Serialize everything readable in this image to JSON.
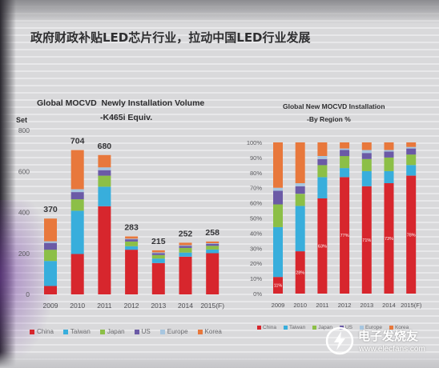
{
  "slide": {
    "title": "政府财政补贴LED芯片行业，拉动中国LED行业发展"
  },
  "chart_data": [
    {
      "type": "bar",
      "stacked": true,
      "title": "Global MOCVD  Newly Installation Volume",
      "subtitle": "-K465i Equiv.",
      "xlabel": "",
      "ylabel": "Set",
      "ylim": [
        0,
        800
      ],
      "yticks": [
        "0",
        "200",
        "400",
        "600",
        "800"
      ],
      "grid": false,
      "legend": "bottom",
      "categories": [
        "2009",
        "2010",
        "2011",
        "2012",
        "2013",
        "2014",
        "2015(F)"
      ],
      "totals": [
        370,
        704,
        680,
        283,
        215,
        252,
        258
      ],
      "series": [
        {
          "name": "China",
          "color": "#d7262d",
          "values": [
            41,
            197,
            430,
            218,
            153,
            184,
            201
          ]
        },
        {
          "name": "Taiwan",
          "color": "#38aedc",
          "values": [
            122,
            211,
            95,
            17,
            22,
            20,
            18
          ]
        },
        {
          "name": "Japan",
          "color": "#8cbf47",
          "values": [
            55,
            56,
            54,
            23,
            17,
            23,
            18
          ]
        },
        {
          "name": "US",
          "color": "#6b5aa6",
          "values": [
            33,
            35,
            27,
            11,
            9,
            10,
            10
          ]
        },
        {
          "name": "Europe",
          "color": "#a7c6e0",
          "values": [
            8,
            14,
            14,
            3,
            4,
            3,
            3
          ]
        },
        {
          "name": "Korea",
          "color": "#e8783c",
          "values": [
            111,
            191,
            60,
            11,
            10,
            12,
            8
          ]
        }
      ]
    },
    {
      "type": "bar",
      "stacked": true,
      "title": "Global New MOCVD Installation",
      "subtitle": "-By Region %",
      "xlabel": "",
      "ylabel": "",
      "ylim": [
        0,
        100
      ],
      "yticks": [
        "0%",
        "10%",
        "20%",
        "30%",
        "40%",
        "50%",
        "60%",
        "70%",
        "80%",
        "90%",
        "100%"
      ],
      "grid": false,
      "legend": "bottom",
      "categories": [
        "2009",
        "2010",
        "2011",
        "2012",
        "2013",
        "2014",
        "2015(F)"
      ],
      "series": [
        {
          "name": "China",
          "color": "#d7262d",
          "values": [
            11,
            28,
            63,
            77,
            71,
            73,
            78
          ],
          "data_labels": [
            "11%",
            "28%",
            "63%",
            "77%",
            "71%",
            "73%",
            "78%"
          ]
        },
        {
          "name": "Taiwan",
          "color": "#38aedc",
          "values": [
            33,
            30,
            14,
            6,
            10,
            8,
            7
          ]
        },
        {
          "name": "Japan",
          "color": "#8cbf47",
          "values": [
            15,
            8,
            8,
            8,
            8,
            9,
            7
          ]
        },
        {
          "name": "US",
          "color": "#6b5aa6",
          "values": [
            9,
            5,
            4,
            4,
            4,
            4,
            4
          ]
        },
        {
          "name": "Europe",
          "color": "#a7c6e0",
          "values": [
            2,
            2,
            2,
            1,
            2,
            1,
            1
          ]
        },
        {
          "name": "Korea",
          "color": "#e8783c",
          "values": [
            30,
            27,
            9,
            4,
            5,
            5,
            3
          ]
        }
      ]
    }
  ],
  "watermark": {
    "brand": "电子发烧友",
    "url": "www.elecfans.com",
    "logo_icon": "elecfans-logo-icon"
  }
}
